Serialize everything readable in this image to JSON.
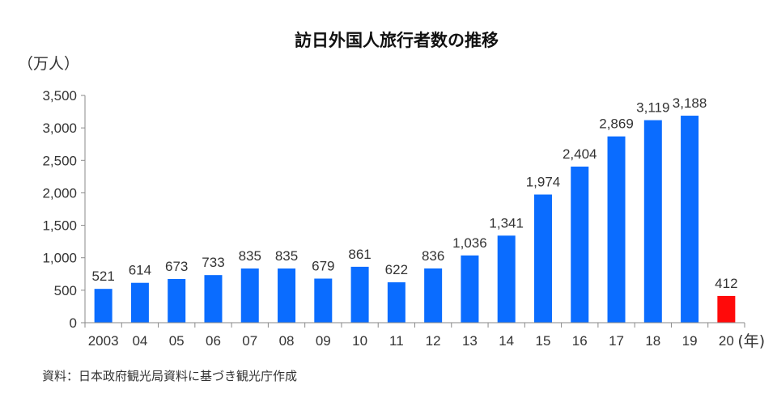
{
  "chart_data": {
    "type": "bar",
    "title": "訪日外国人旅行者数の推移",
    "ylabel": "（万人）",
    "xlabel": "(年)",
    "categories": [
      "2003",
      "04",
      "05",
      "06",
      "07",
      "08",
      "09",
      "10",
      "11",
      "12",
      "13",
      "14",
      "15",
      "16",
      "17",
      "18",
      "19",
      "20"
    ],
    "series": [
      {
        "values": [
          521,
          614,
          673,
          733,
          835,
          835,
          679,
          861,
          622,
          836,
          1036,
          1341,
          1974,
          2404,
          2869,
          3119,
          3188,
          412
        ]
      }
    ],
    "data_labels": [
      "521",
      "614",
      "673",
      "733",
      "835",
      "835",
      "679",
      "861",
      "622",
      "836",
      "1,036",
      "1,341",
      "1,974",
      "2,404",
      "2,869",
      "3,119",
      "3,188",
      "412"
    ],
    "yticks": [
      0,
      500,
      1000,
      1500,
      2000,
      2500,
      3000,
      3500
    ],
    "ytick_labels": [
      "0",
      "500",
      "1,000",
      "1,500",
      "2,000",
      "2,500",
      "3,000",
      "3,500"
    ],
    "ylim": [
      0,
      3500
    ],
    "grid": false,
    "colors": {
      "default_bar": "#0a6cff",
      "highlight_bar": "#ff0a0a",
      "highlight_index": 17
    }
  },
  "source": "資料：日本政府観光局資料に基づき観光庁作成"
}
